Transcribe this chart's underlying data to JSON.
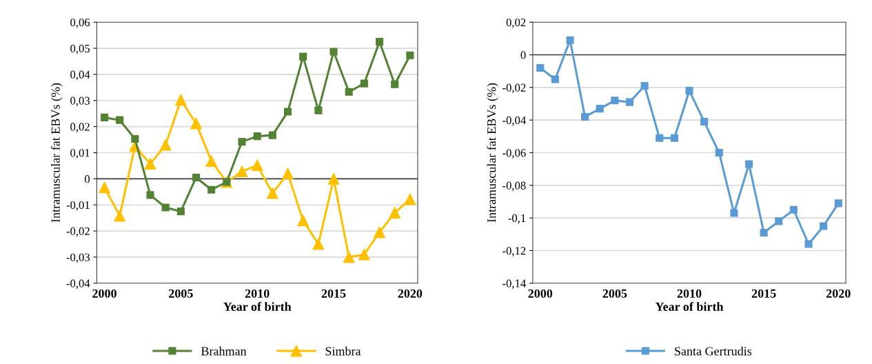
{
  "chart_data": [
    {
      "type": "line",
      "xlabel": "Year of birth",
      "ylabel": "Intramuscular fat EBVs (%)",
      "x": [
        2000,
        2001,
        2002,
        2003,
        2004,
        2005,
        2006,
        2007,
        2008,
        2009,
        2010,
        2011,
        2012,
        2013,
        2014,
        2015,
        2016,
        2017,
        2018,
        2019,
        2020
      ],
      "series": [
        {
          "name": "Brahman",
          "color": "#548235",
          "marker": "square",
          "values": [
            0.0235,
            0.0225,
            0.0153,
            -0.0062,
            -0.011,
            -0.0125,
            0.0005,
            -0.0042,
            -0.0012,
            0.0142,
            0.0163,
            0.0167,
            0.0257,
            0.0468,
            0.0262,
            0.0487,
            0.0333,
            0.0365,
            0.0525,
            0.0362,
            0.0473
          ]
        },
        {
          "name": "Simbra",
          "color": "#ffc000",
          "marker": "triangle",
          "values": [
            -0.0033,
            -0.0142,
            0.0125,
            0.0057,
            0.013,
            0.0302,
            0.0212,
            0.0068,
            -0.0013,
            0.0028,
            0.0052,
            -0.0055,
            0.002,
            -0.016,
            -0.025,
            0.0,
            -0.03,
            -0.029,
            -0.0205,
            -0.013,
            -0.0078
          ]
        }
      ],
      "xlim": [
        1999.5,
        2020.5
      ],
      "xticks": [
        2000,
        2005,
        2010,
        2015,
        2020
      ],
      "ylim": [
        -0.04,
        0.06
      ],
      "yticks": [
        {
          "value": -0.04,
          "label": "-0,04"
        },
        {
          "value": -0.03,
          "label": "-0,03"
        },
        {
          "value": -0.02,
          "label": "-0,02"
        },
        {
          "value": -0.01,
          "label": "-0,01"
        },
        {
          "value": 0,
          "label": "0"
        },
        {
          "value": 0.01,
          "label": "0,01"
        },
        {
          "value": 0.02,
          "label": "0,02"
        },
        {
          "value": 0.03,
          "label": "0,03"
        },
        {
          "value": 0.04,
          "label": "0,04"
        },
        {
          "value": 0.05,
          "label": "0,05"
        },
        {
          "value": 0.06,
          "label": "0,06"
        }
      ],
      "ref_lines": [
        {
          "axis": "y",
          "value": 0,
          "color": "#404040"
        }
      ],
      "grid": "y",
      "legend": "bottom",
      "line_style": "solid"
    },
    {
      "type": "line",
      "xlabel": "Year of birth",
      "ylabel": "Intramuscular fat EBVs (%)",
      "x": [
        2000,
        2001,
        2002,
        2003,
        2004,
        2005,
        2006,
        2007,
        2008,
        2009,
        2010,
        2011,
        2012,
        2013,
        2014,
        2015,
        2016,
        2017,
        2018,
        2019,
        2020
      ],
      "series": [
        {
          "name": "Santa Gertrudis",
          "color": "#5b9bd5",
          "marker": "square",
          "values": [
            -0.008,
            -0.015,
            0.009,
            -0.038,
            -0.033,
            -0.028,
            -0.029,
            -0.019,
            -0.051,
            -0.051,
            -0.022,
            -0.041,
            -0.06,
            -0.097,
            -0.067,
            -0.109,
            -0.102,
            -0.095,
            -0.116,
            -0.105,
            -0.091
          ]
        }
      ],
      "xlim": [
        1999.5,
        2020.5
      ],
      "xticks": [
        2000,
        2005,
        2010,
        2015,
        2020
      ],
      "ylim": [
        -0.14,
        0.02
      ],
      "yticks": [
        {
          "value": -0.14,
          "label": "-0,14"
        },
        {
          "value": -0.12,
          "label": "-0,12"
        },
        {
          "value": -0.1,
          "label": "-0,1"
        },
        {
          "value": -0.08,
          "label": "-0,08"
        },
        {
          "value": -0.06,
          "label": "-0,06"
        },
        {
          "value": -0.04,
          "label": "-0,04"
        },
        {
          "value": -0.02,
          "label": "-0,02"
        },
        {
          "value": 0,
          "label": "0"
        },
        {
          "value": 0.02,
          "label": "0,02"
        }
      ],
      "ref_lines": [
        {
          "axis": "y",
          "value": 0,
          "color": "#404040"
        }
      ],
      "grid": "y",
      "legend": "bottom",
      "line_style": "solid"
    }
  ]
}
